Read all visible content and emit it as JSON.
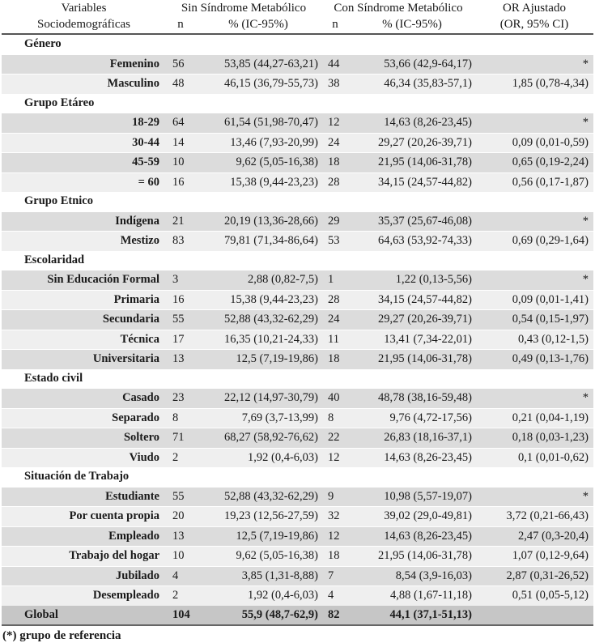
{
  "header": {
    "variables": "Variables",
    "sociodemograficas": "Sociodemográficas",
    "sin": "Sin Síndrome Metabólico",
    "con": "Con Síndrome Metabólico",
    "or": "OR Ajustado",
    "or_sub": "(OR, 95% CI)",
    "n": "n",
    "pct": "% (IC-95%)"
  },
  "groups": [
    {
      "title": "Género",
      "rows": [
        [
          "Femenino",
          "56",
          "53,85 (44,27-63,21)",
          "44",
          "53,66 (42,9-64,17)",
          "*"
        ],
        [
          "Masculino",
          "48",
          "46,15 (36,79-55,73)",
          "38",
          "46,34 (35,83-57,1)",
          "1,85 (0,78-4,34)"
        ]
      ]
    },
    {
      "title": "Grupo Etáreo",
      "rows": [
        [
          "18-29",
          "64",
          "61,54 (51,98-70,47)",
          "12",
          "14,63 (8,26-23,45)",
          "*"
        ],
        [
          "30-44",
          "14",
          "13,46 (7,93-20,99)",
          "24",
          "29,27 (20,26-39,71)",
          "0,09 (0,01-0,59)"
        ],
        [
          "45-59",
          "10",
          "9,62 (5,05-16,38)",
          "18",
          "21,95 (14,06-31,78)",
          "0,65 (0,19-2,24)"
        ],
        [
          "= 60",
          "16",
          "15,38 (9,44-23,23)",
          "28",
          "34,15 (24,57-44,82)",
          "0,56 (0,17-1,87)"
        ]
      ]
    },
    {
      "title": "Grupo Etnico",
      "rows": [
        [
          "Indígena",
          "21",
          "20,19 (13,36-28,66)",
          "29",
          "35,37 (25,67-46,08)",
          "*"
        ],
        [
          "Mestizo",
          "83",
          "79,81 (71,34-86,64)",
          "53",
          "64,63 (53,92-74,33)",
          "0,69 (0,29-1,64)"
        ]
      ]
    },
    {
      "title": "Escolaridad",
      "rows": [
        [
          "Sin Educación Formal",
          "3",
          "2,88 (0,82-7,5)",
          "1",
          "1,22 (0,13-5,56)",
          "*"
        ],
        [
          "Primaria",
          "16",
          "15,38 (9,44-23,23)",
          "28",
          "34,15 (24,57-44,82)",
          "0,09 (0,01-1,41)"
        ],
        [
          "Secundaria",
          "55",
          "52,88 (43,32-62,29)",
          "24",
          "29,27 (20,26-39,71)",
          "0,54 (0,15-1,97)"
        ],
        [
          "Técnica",
          "17",
          "16,35 (10,21-24,33)",
          "11",
          "13,41 (7,34-22,01)",
          "0,43 (0,12-1,5)"
        ],
        [
          "Universitaria",
          "13",
          "12,5 (7,19-19,86)",
          "18",
          "21,95 (14,06-31,78)",
          "0,49 (0,13-1,76)"
        ]
      ]
    },
    {
      "title": "Estado civil",
      "rows": [
        [
          "Casado",
          "23",
          "22,12 (14,97-30,79)",
          "40",
          "48,78 (38,16-59,48)",
          "*"
        ],
        [
          "Separado",
          "8",
          "7,69 (3,7-13,99)",
          "8",
          "9,76 (4,72-17,56)",
          "0,21 (0,04-1,19)"
        ],
        [
          "Soltero",
          "71",
          "68,27 (58,92-76,62)",
          "22",
          "26,83 (18,16-37,1)",
          "0,18 (0,03-1,23)"
        ],
        [
          "Viudo",
          "2",
          "1,92 (0,4-6,03)",
          "12",
          "14,63 (8,26-23,45)",
          "0,1 (0,01-0,62)"
        ]
      ]
    },
    {
      "title": "Situación de Trabajo",
      "rows": [
        [
          "Estudiante",
          "55",
          "52,88 (43,32-62,29)",
          "9",
          "10,98 (5,57-19,07)",
          "*"
        ],
        [
          "Por cuenta propia",
          "20",
          "19,23 (12,56-27,59)",
          "32",
          "39,02 (29,0-49,81)",
          "3,72 (0,21-66,43)"
        ],
        [
          "Empleado",
          "13",
          "12,5 (7,19-19,86)",
          "12",
          "14,63 (8,26-23,45)",
          "2,47 (0,3-20,4)"
        ],
        [
          "Trabajo del hogar",
          "10",
          "9,62 (5,05-16,38)",
          "18",
          "21,95 (14,06-31,78)",
          "1,07 (0,12-9,64)"
        ],
        [
          "Jubilado",
          "4",
          "3,85 (1,31-8,88)",
          "7",
          "8,54 (3,9-16,03)",
          "2,87 (0,31-26,52)"
        ],
        [
          "Desempleado",
          "2",
          "1,92 (0,4-6,03)",
          "4",
          "4,88 (1,67-11,18)",
          "0,51 (0,05-5,12)"
        ]
      ]
    }
  ],
  "global": [
    "Global",
    "104",
    "55,9 (48,7-62,9)",
    "82",
    "44,1 (37,1-51,13)",
    ""
  ],
  "footnote": "(*) grupo de referencia"
}
